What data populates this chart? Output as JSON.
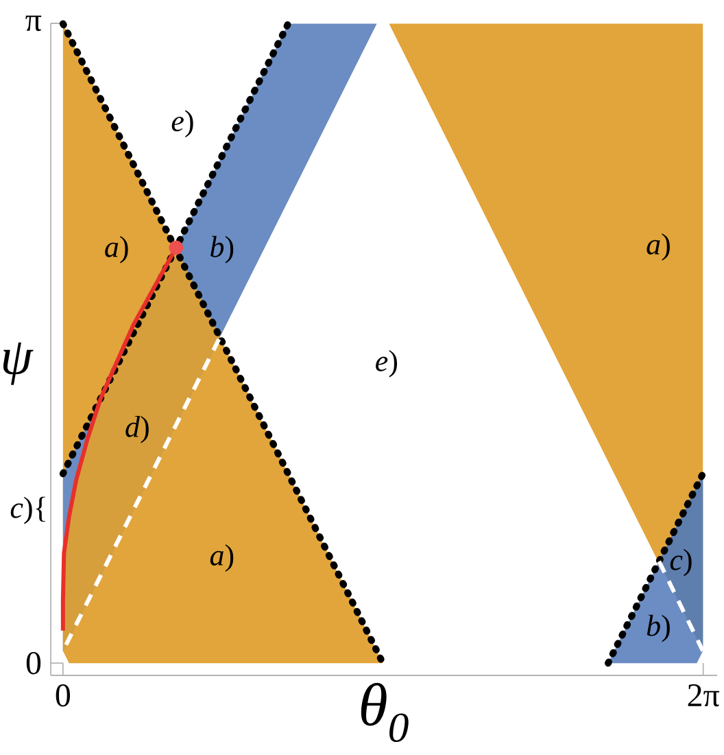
{
  "chart_data": {
    "type": "line",
    "xlabel": "θ$_{0}$",
    "ylabel": "ψ",
    "xlim": [
      -0.12,
      6.42
    ],
    "ylim": [
      -0.06,
      3.1416
    ],
    "xticks": [
      {
        "value": 0,
        "label": "0"
      },
      {
        "value": 6.2832,
        "label": "2π"
      }
    ],
    "yticks": [
      {
        "value": 0,
        "label": "0"
      },
      {
        "value": 3.1416,
        "label": "π"
      }
    ],
    "series": [
      {
        "color": "#e2a53b",
        "x": [
          0,
          0.06,
          3.14
        ],
        "values": [
          null,
          null,
          null
        ],
        "lower": [
          0.06,
          0,
          0
        ],
        "upper": [
          3.14,
          3.08,
          0
        ]
      },
      {
        "color": "#e2a53b",
        "x": [
          3.2,
          6.28
        ],
        "values": [
          null,
          null
        ],
        "lower": [
          3.14,
          0.06
        ],
        "upper": [
          3.14,
          3.14
        ]
      },
      {
        "color": "#6b8dc3",
        "x": [
          0,
          2.21,
          3.08
        ],
        "values": [
          null,
          null,
          null
        ],
        "lower": [
          0.06,
          2.27,
          3.14
        ],
        "upper": [
          0.93,
          3.14,
          3.14
        ]
      },
      {
        "color": "#6b8dc3",
        "x": [
          5.35,
          6.22,
          6.28
        ],
        "values": [
          null,
          null,
          null
        ],
        "lower": [
          0,
          0,
          0.06
        ],
        "upper": [
          0,
          0.87,
          0.93
        ]
      },
      {
        "color": "#d69f3c",
        "x": [
          0,
          0.01,
          0.06,
          0.13,
          0.24,
          0.37,
          0.69,
          1.11,
          1.54
        ],
        "values": [
          null,
          null,
          null,
          null,
          null,
          null,
          null,
          null,
          null
        ],
        "lower": [
          0.06,
          0.07,
          0.12,
          0.19,
          0.3,
          0.43,
          0.75,
          1.17,
          1.6
        ],
        "upper": [
          0.31,
          0.54,
          0.72,
          0.9,
          1.1,
          1.3,
          1.66,
          2.04,
          1.6
        ]
      },
      {
        "color": "#5e7eae",
        "x": [
          5.85,
          6.28
        ],
        "values": [
          null,
          null
        ],
        "lower": [
          0.5,
          0.06
        ],
        "upper": [
          0.5,
          0.93
        ]
      },
      {
        "color": "#000000",
        "line_style": "dotted",
        "x": [
          0,
          3.14
        ],
        "values": [
          3.14,
          0
        ]
      },
      {
        "color": "#000000",
        "line_style": "dotted",
        "x": [
          0,
          2.21
        ],
        "values": [
          0.93,
          3.14
        ]
      },
      {
        "color": "#000000",
        "line_style": "dotted",
        "x": [
          5.35,
          6.28
        ],
        "values": [
          0,
          0.93
        ]
      },
      {
        "color": "#ffffff",
        "line_style": "dashed",
        "x": [
          0.03,
          1.54
        ],
        "values": [
          0.09,
          1.6
        ]
      },
      {
        "color": "#ffffff",
        "line_style": "dashed",
        "x": [
          5.85,
          6.28
        ],
        "values": [
          0.5,
          0.06
        ]
      },
      {
        "color": "#e8302a",
        "line_style": "solid",
        "x": [
          0,
          0,
          0.01,
          0.06,
          0.13,
          0.24,
          0.37,
          0.69,
          1.11
        ],
        "values": [
          0.16,
          0.31,
          0.54,
          0.72,
          0.9,
          1.1,
          1.3,
          1.66,
          2.04
        ]
      },
      {
        "type": "scatter",
        "color": "#ee5050",
        "marker": "circle",
        "x": [
          1.11
        ],
        "values": [
          2.04
        ]
      }
    ],
    "annotations": [
      "*a*)",
      "*b*)",
      "*e*)",
      "*e*)",
      "*a*)",
      "*d*)",
      "*a*)",
      "*c*){",
      "*c*)",
      "*b*)"
    ]
  }
}
